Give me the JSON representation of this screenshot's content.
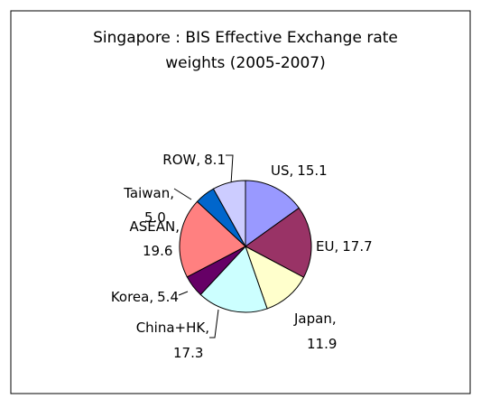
{
  "chart_data": {
    "type": "pie",
    "title": "Singapore : BIS Effective Exchange rate weights (2005-2007)",
    "title_lines": [
      "Singapore : BIS Effective Exchange rate",
      "weights (2005-2007)"
    ],
    "categories": [
      "US",
      "EU",
      "Japan",
      "China+HK",
      "Korea",
      "ASEAN",
      "Taiwan",
      "ROW"
    ],
    "values": [
      15.1,
      17.7,
      11.9,
      17.3,
      5.4,
      19.6,
      5.0,
      8.1
    ],
    "value_labels": [
      "15.1",
      "17.7",
      "11.9",
      "17.3",
      "5.4",
      "19.6",
      "5.0",
      "8.1"
    ],
    "label_separator": ",",
    "colors": [
      "#9999ff",
      "#993366",
      "#ffffcc",
      "#ccffff",
      "#660066",
      "#ff8080",
      "#0066cc",
      "#ccccff"
    ]
  }
}
